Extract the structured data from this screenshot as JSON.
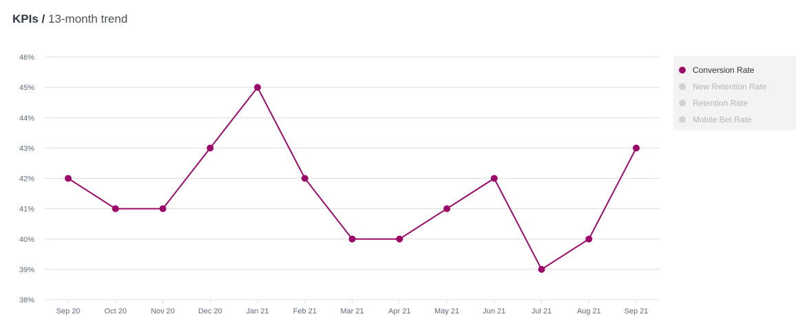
{
  "header": {
    "title": "KPIs /",
    "subtitle": "13-month trend"
  },
  "legend": {
    "items": [
      {
        "label": "Conversion Rate",
        "active": true,
        "color": "#9b0a68"
      },
      {
        "label": "New Retention Rate",
        "active": false,
        "color": "#d3d3d3"
      },
      {
        "label": "Retention Rate",
        "active": false,
        "color": "#d3d3d3"
      },
      {
        "label": "Mobile Bet Rate",
        "active": false,
        "color": "#d3d3d3"
      }
    ]
  },
  "colors": {
    "series": "#9b0a68",
    "grid": "#dcdcdc",
    "axis_text": "#5f6b7a",
    "legend_active_text": "#333333",
    "legend_inactive_text": "#b5b5b5",
    "legend_bg": "#f3f3f3"
  },
  "chart_data": {
    "type": "line",
    "title": "",
    "xlabel": "",
    "ylabel": "",
    "categories": [
      "Sep 20",
      "Oct 20",
      "Nov 20",
      "Dec 20",
      "Jan 21",
      "Feb 21",
      "Mar 21",
      "Apr 21",
      "May 21",
      "Jun 21",
      "Jul 21",
      "Aug 21",
      "Sep 21"
    ],
    "series": [
      {
        "name": "Conversion Rate",
        "values": [
          42,
          41,
          41,
          43,
          45,
          42,
          40,
          40,
          41,
          42,
          39,
          40,
          43
        ]
      }
    ],
    "ylim": [
      38,
      46
    ],
    "yticks": [
      38,
      39,
      40,
      41,
      42,
      43,
      44,
      45,
      46
    ],
    "ytick_labels": [
      "38%",
      "39%",
      "40%",
      "41%",
      "42%",
      "43%",
      "44%",
      "45%",
      "46%"
    ],
    "grid": true,
    "legend_position": "right"
  }
}
